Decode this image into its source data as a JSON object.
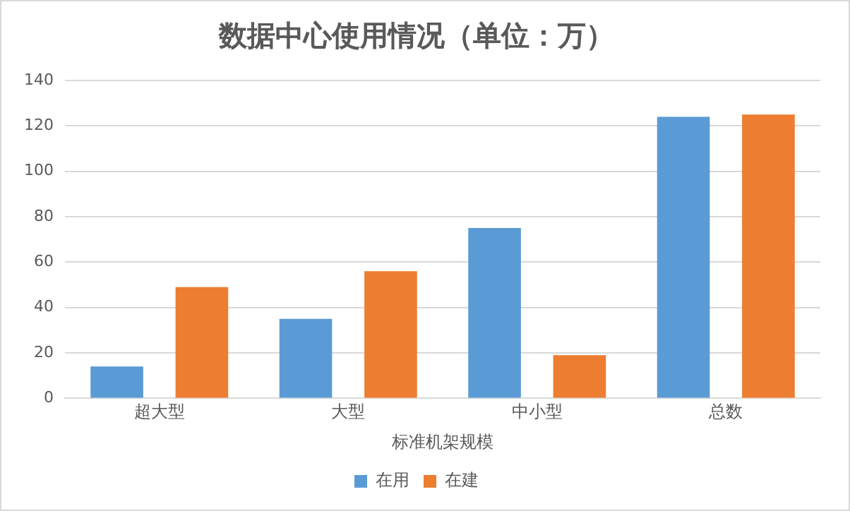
{
  "chart_data": {
    "type": "bar",
    "title": "数据中心使用情况（单位：万）",
    "xlabel": "标准机架规模",
    "categories": [
      "超大型",
      "大型",
      "中小型",
      "总数"
    ],
    "series": [
      {
        "name": "在用",
        "color": "#5b9bd5",
        "values": [
          14,
          35,
          75,
          124
        ]
      },
      {
        "name": "在建",
        "color": "#ed7d31",
        "values": [
          49,
          56,
          19,
          125
        ]
      }
    ],
    "ylim": [
      0,
      140
    ],
    "yticks": [
      0,
      20,
      40,
      60,
      80,
      100,
      120,
      140
    ],
    "grid": "y",
    "legend": "bottom"
  }
}
